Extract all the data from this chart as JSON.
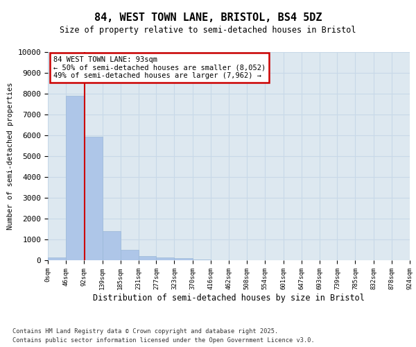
{
  "title": "84, WEST TOWN LANE, BRISTOL, BS4 5DZ",
  "subtitle": "Size of property relative to semi-detached houses in Bristol",
  "xlabel": "Distribution of semi-detached houses by size in Bristol",
  "ylabel": "Number of semi-detached properties",
  "bar_edges": [
    0,
    46,
    92,
    139,
    185,
    231,
    277,
    323,
    370,
    416,
    462,
    508,
    554,
    601,
    647,
    693,
    739,
    785,
    832,
    878,
    924
  ],
  "bar_heights": [
    150,
    7900,
    5950,
    1400,
    500,
    200,
    150,
    100,
    50,
    0,
    0,
    0,
    0,
    0,
    0,
    0,
    0,
    0,
    0,
    0
  ],
  "bar_color": "#aec6e8",
  "bar_edgecolor": "#9ab8d8",
  "bar_linewidth": 0.5,
  "red_line_x": 93,
  "red_line_color": "#cc0000",
  "ylim": [
    0,
    10000
  ],
  "xlim": [
    0,
    924
  ],
  "annotation_title": "84 WEST TOWN LANE: 93sqm",
  "annotation_line1": "← 50% of semi-detached houses are smaller (8,052)",
  "annotation_line2": "49% of semi-detached houses are larger (7,962) →",
  "annotation_box_color": "#cc0000",
  "grid_color": "#c8d8e8",
  "background_color": "#dde8f0",
  "footer_line1": "Contains HM Land Registry data © Crown copyright and database right 2025.",
  "footer_line2": "Contains public sector information licensed under the Open Government Licence v3.0.",
  "tick_labels": [
    "0sqm",
    "46sqm",
    "92sqm",
    "139sqm",
    "185sqm",
    "231sqm",
    "277sqm",
    "323sqm",
    "370sqm",
    "416sqm",
    "462sqm",
    "508sqm",
    "554sqm",
    "601sqm",
    "647sqm",
    "693sqm",
    "739sqm",
    "785sqm",
    "832sqm",
    "878sqm",
    "924sqm"
  ],
  "yticks": [
    0,
    1000,
    2000,
    3000,
    4000,
    5000,
    6000,
    7000,
    8000,
    9000,
    10000
  ]
}
